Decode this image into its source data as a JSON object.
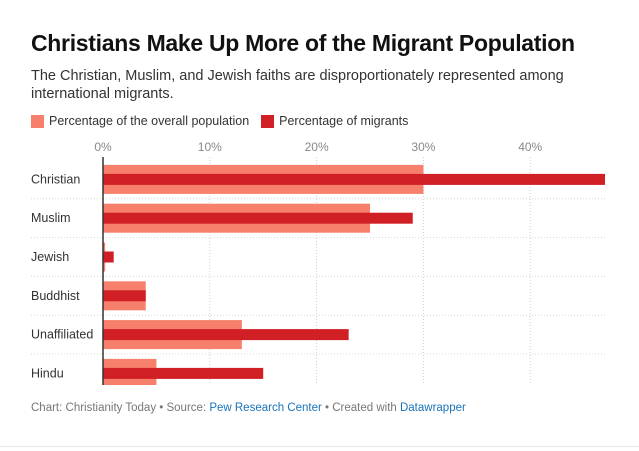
{
  "header": {
    "title": "Christians Make Up More of the Migrant Population",
    "subtitle": "The Christian, Muslim, and Jewish faiths are disproportionately represented among international migrants."
  },
  "legend": {
    "overall_label": "Percentage of the overall population",
    "migrants_label": "Percentage of migrants"
  },
  "colors": {
    "overall": "#f7806c",
    "migrants": "#d01f25",
    "grid": "#cfcfcf",
    "axis": "#333333"
  },
  "chart_data": {
    "type": "bar",
    "orientation": "horizontal",
    "categories": [
      "Christian",
      "Muslim",
      "Jewish",
      "Buddhist",
      "Unaffiliated",
      "Hindu"
    ],
    "series": [
      {
        "name": "Percentage of the overall population",
        "values": [
          30,
          25,
          0.2,
          4,
          13,
          5
        ]
      },
      {
        "name": "Percentage of migrants",
        "values": [
          47,
          29,
          1,
          4,
          23,
          15
        ]
      }
    ],
    "xlim": [
      0,
      47
    ],
    "ticks": [
      0,
      10,
      20,
      30,
      40
    ],
    "tick_labels": [
      "0%",
      "10%",
      "20%",
      "30%",
      "40%"
    ],
    "grid": true,
    "legend_position": "top-left"
  },
  "footer": {
    "prefix": "Chart: Christianity Today • Source: ",
    "source_link": "Pew Research Center",
    "middle": " • Created with ",
    "tool_link": "Datawrapper"
  }
}
